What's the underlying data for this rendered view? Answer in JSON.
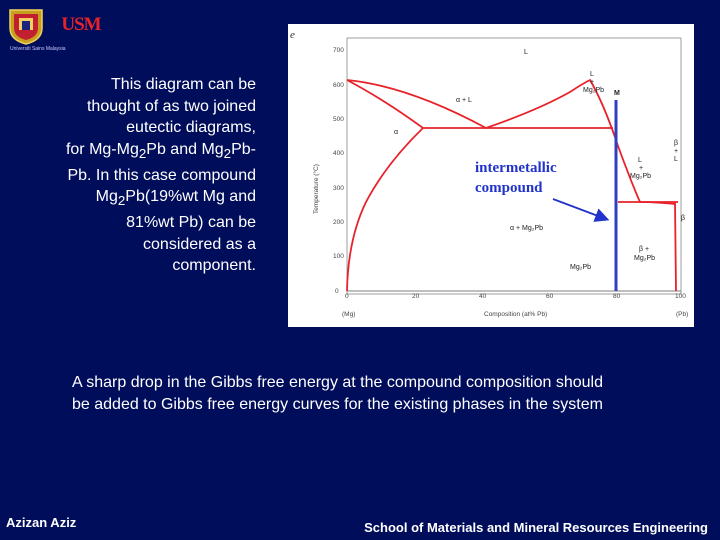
{
  "logo": {
    "mark": "USM",
    "caption": "Universiti Sains Malaysia"
  },
  "left_text": {
    "line1": "This diagram can be",
    "line2": "thought of as two joined",
    "line3": "eutectic diagrams,",
    "line4_a": "for Mg-Mg",
    "line4_sub": "2",
    "line4_b": "Pb and Mg",
    "line4_sub2": "2",
    "line4_c": "Pb-",
    "line5": "Pb. In this case compound",
    "line6_a": "Mg",
    "line6_sub": "2",
    "line6_b": "Pb(19%wt Mg and",
    "line7": "81%wt Pb) can be",
    "line8": "considered as a",
    "line9": "component."
  },
  "figure": {
    "panel_letter": "e",
    "annotation_line1": "intermetallic",
    "annotation_line2": "compound",
    "colors": {
      "liquidus": "#e8222a",
      "compound_line": "#2f3fc0",
      "annotation": "#2233cc"
    },
    "phase_labels": {
      "L": "L",
      "alpha_L": "α + L",
      "alpha": "α",
      "mg2pb_l_top_a": "L",
      "mg2pb_l_top_b": "+",
      "mg2pb_l_top_c": "Mg₂Pb",
      "M": "M",
      "l_mg2pb_right_a": "L",
      "l_mg2pb_right_b": "+",
      "l_mg2pb_right_c": "Mg₂Pb",
      "alpha_mg2pb": "α  +  Mg₂Pb",
      "beta": "β",
      "beta_l_a": "β",
      "beta_l_b": "+",
      "beta_l_c": "L",
      "beta_mg2pb_a": "β +",
      "beta_mg2pb_b": "Mg₂Pb",
      "mg2pb_bottom": "Mg₂Pb"
    },
    "y_axis": {
      "label": "Temperature (°C)",
      "ticks": [
        "0",
        "100",
        "200",
        "300",
        "400",
        "500",
        "600",
        "700"
      ]
    },
    "x_axis": {
      "label": "Composition (at% Pb)",
      "ticks": [
        "0",
        "20",
        "40",
        "60",
        "80",
        "100"
      ],
      "left_end": "(Mg)",
      "right_end": "(Pb)"
    }
  },
  "bottom_text": {
    "line1": "A sharp drop in the Gibbs free energy at the compound composition should",
    "line2": "be added to Gibbs free energy curves for the existing phases in the system"
  },
  "footer": {
    "author": "Azizan Aziz",
    "school": "School of Materials and Mineral Resources Engineering"
  }
}
